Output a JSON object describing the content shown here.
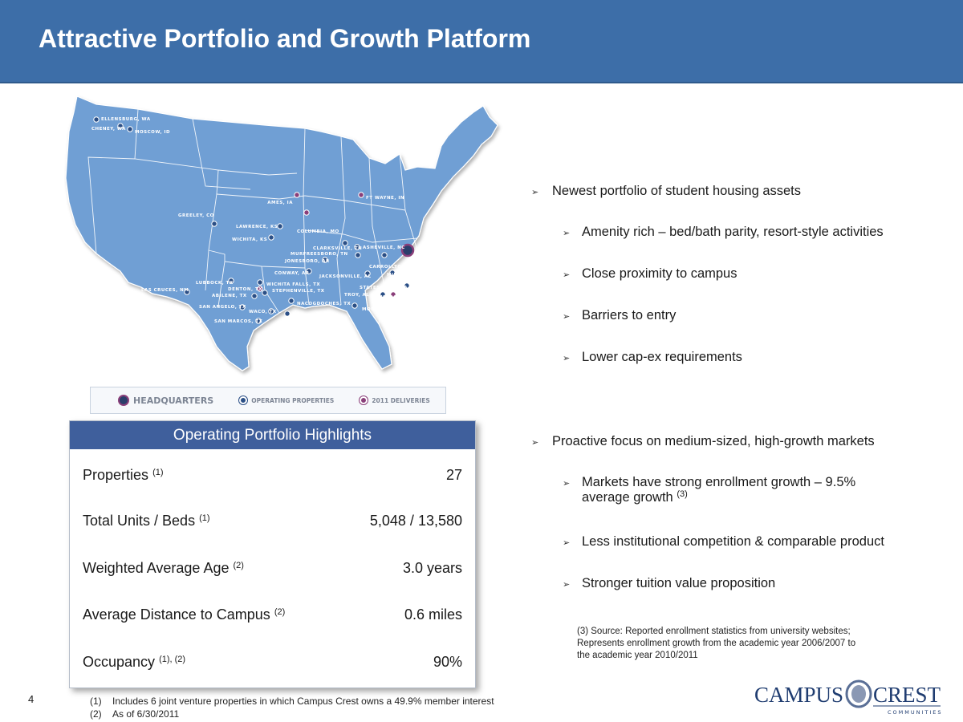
{
  "title": "Attractive Portfolio and Growth Platform",
  "map": {
    "cities": [
      "ELLENSBURG, WA",
      "CHENEY, WA",
      "MOSCOW, ID",
      "GREELEY, CO",
      "AMES, IA",
      "FT WAYNE, IN",
      "LAWRENCE, KS",
      "COLUMBIA, MO",
      "WICHITA, KS",
      "CLARKSVILLE, TN",
      "ASHEVILLE, NC",
      "MURFREESBORO, TN",
      "JONESBORO, AR",
      "CARROLLTON, GA",
      "MILLEDGEVILLE, GA",
      "CONWAY, AR",
      "JACKSONVILLE, AL",
      "LUBBOCK, TX",
      "WICHITA FALLS, TX",
      "DENTON, TX",
      "STEPHENVILLE, TX",
      "STATESBORO, GA",
      "LAS CRUCES, NM",
      "ABILENE, TX",
      "TROY, AL",
      "VALDOSTA, GA",
      "NACOGDOCHES, TX",
      "SAN ANGELO, TX",
      "WACO, TX",
      "MOBILE, AL",
      "HUNTSVILLE, TX",
      "SAN MARCOS, TX"
    ],
    "colors": {
      "land": "#6f9fd4",
      "operating": "#2b4f86",
      "delivery": "#8a3f7a",
      "headquarters": "#2b3e6b"
    }
  },
  "legend": {
    "headquarters": "HEADQUARTERS",
    "operating": "OPERATING PROPERTIES",
    "deliveries": "2011 DELIVERIES"
  },
  "table": {
    "header": "Operating Portfolio Highlights",
    "rows": [
      {
        "label": "Properties",
        "note": "(1)",
        "value": "27"
      },
      {
        "label": "Total Units / Beds",
        "note": "(1)",
        "value": "5,048 / 13,580"
      },
      {
        "label": "Weighted Average Age",
        "note": "(2)",
        "value": "3.0 years"
      },
      {
        "label": "Average Distance to Campus",
        "note": "(2)",
        "value": "0.6 miles"
      },
      {
        "label": "Occupancy",
        "note": "(1), (2)",
        "value": "90%"
      }
    ]
  },
  "bullets": {
    "b1": "Newest portfolio of student housing assets",
    "b1_1": "Amenity rich – bed/bath parity, resort-style activities",
    "b1_2": "Close proximity to campus",
    "b1_3": "Barriers to entry",
    "b1_4": "Lower cap-ex requirements",
    "b2": "Proactive focus on medium-sized, high-growth markets",
    "b2_1_line1": "Markets have strong enrollment growth – 9.5%",
    "b2_1_line2": "average growth",
    "b2_1_note": "(3)",
    "b2_2": "Less institutional competition & comparable product",
    "b2_3": "Stronger tuition value proposition"
  },
  "source_note": {
    "line1": "(3) Source: Reported enrollment statistics from university websites;",
    "line2": "Represents enrollment growth from the academic year 2006/2007 to",
    "line3": "the academic year 2010/2011"
  },
  "page_number": "4",
  "footnotes": {
    "fn1_num": "(1)",
    "fn1_text": "Includes 6 joint venture properties in which Campus Crest owns a 49.9% member interest",
    "fn2_num": "(2)",
    "fn2_text": "As of 6/30/2011"
  },
  "logo": {
    "word1": "CAMPUS",
    "word2": "CREST",
    "sub": "COMMUNITIES"
  },
  "arrow_glyph": "➢"
}
